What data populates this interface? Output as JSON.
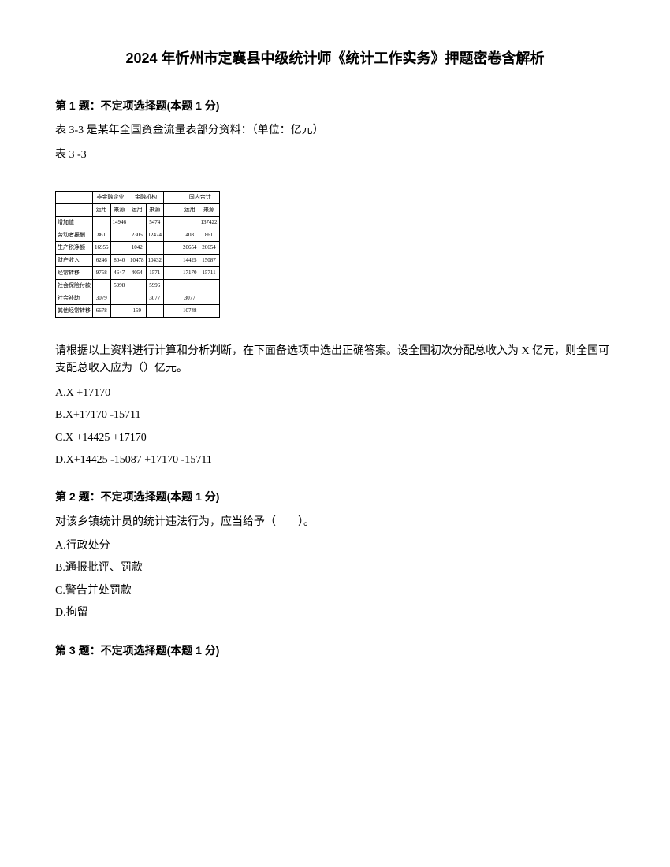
{
  "title": "2024 年忻州市定襄县中级统计师《统计工作实务》押题密卷含解析",
  "questions": [
    {
      "header": "第 1 题：不定项选择题(本题 1 分)",
      "intro1": "表 3-3 是某年全国资金流量表部分资料：（单位：亿元）",
      "intro2": "表 3 -3",
      "stem": "请根据以上资料进行计算和分析判断，在下面备选项中选出正确答案。设全国初次分配总收入为 X 亿元，则全国可支配总收入应为（）亿元。",
      "options": [
        "A.X +17170",
        "B.X+17170 -15711",
        "C.X +14425 +17170",
        "D.X+14425 -15087 +17170 -15711"
      ]
    },
    {
      "header": "第 2 题：不定项选择题(本题 1 分)",
      "stem": "对该乡镇统计员的统计违法行为，应当给予（　　）。",
      "options": [
        "A.行政处分",
        "B.通报批评、罚款",
        "C.警告并处罚款",
        "D.拘留"
      ]
    },
    {
      "header": "第 3 题：不定项选择题(本题 1 分)"
    }
  ],
  "table": {
    "header_row1": [
      "",
      "非金融企业",
      "金融机构",
      "",
      "国内合计"
    ],
    "header_row2": [
      "",
      "运用",
      "来源",
      "运用",
      "来源",
      "运用",
      "来源"
    ],
    "rows": [
      [
        "增加值",
        "",
        "14946",
        "",
        "5474",
        "",
        "137422"
      ],
      [
        "劳动者报酬",
        "861",
        "",
        "2305",
        "12474",
        "408",
        "861"
      ],
      [
        "生产税净额",
        "16955",
        "",
        "1042",
        "",
        "20654",
        "20654"
      ],
      [
        "财产收入",
        "6246",
        "8040",
        "10478",
        "10432",
        "14425",
        "15087"
      ],
      [
        "经常转移",
        "9758",
        "4647",
        "4054",
        "1571",
        "17170",
        "15711"
      ],
      [
        "社会保险付款",
        "",
        "5998",
        "",
        "5996",
        "",
        ""
      ],
      [
        "社会补助",
        "3079",
        "",
        "",
        "3077",
        "3077",
        ""
      ],
      [
        "其他经常转移",
        "6678",
        "",
        "159",
        "",
        "10748",
        ""
      ]
    ]
  }
}
